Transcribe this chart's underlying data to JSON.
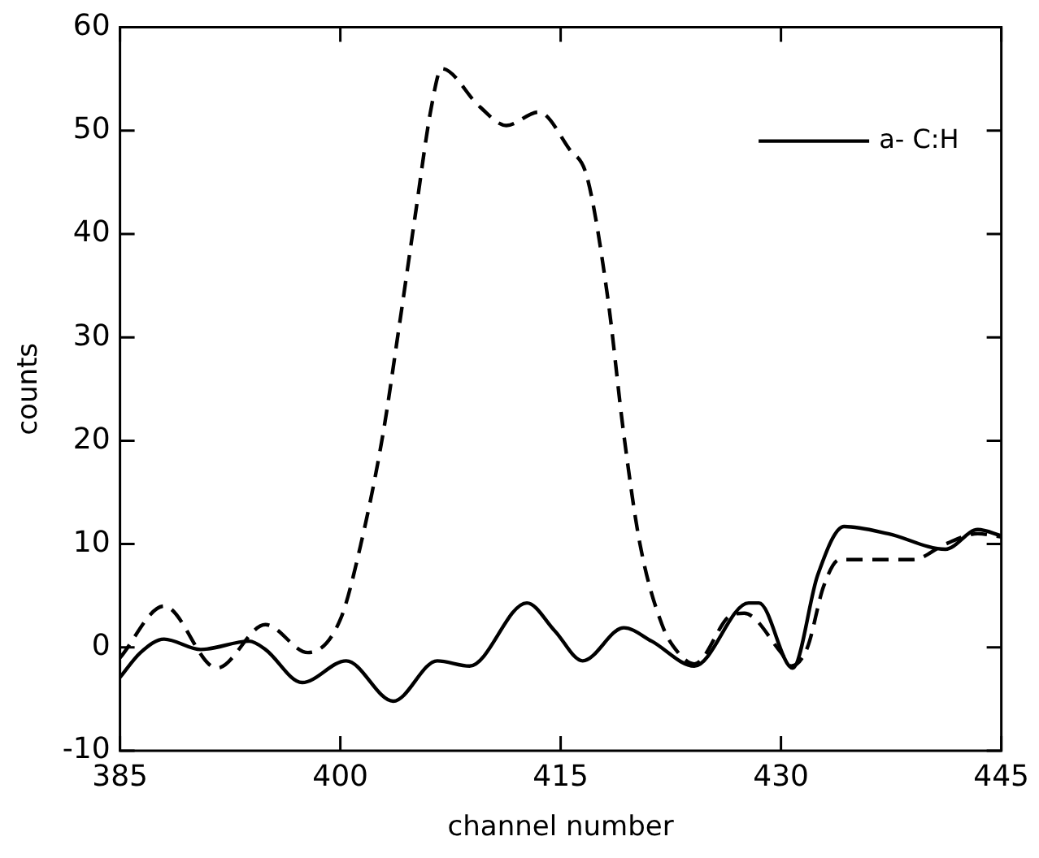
{
  "chart_data": {
    "type": "line",
    "xlabel": "channel number",
    "ylabel": "counts",
    "xlim": [
      385,
      445
    ],
    "xticks": [
      385,
      400,
      415,
      430,
      445
    ],
    "ylim": [
      -10,
      60
    ],
    "yticks": [
      -10,
      0,
      10,
      20,
      30,
      40,
      50,
      60
    ],
    "grid": false,
    "legend": "top right",
    "marker": "none",
    "series": [
      {
        "color": "#000000",
        "line_style": "dashed",
        "x": [
          385,
          388,
          391.6,
          394.9,
          397.8,
          400,
          401.4,
          402.9,
          404,
          405.1,
          406.2,
          406.9,
          409.5,
          411.3,
          413.5,
          415.6,
          416.8,
          418.2,
          419.3,
          420.4,
          421.9,
          423,
          424.1,
          426.7,
          427.5,
          430,
          430.7,
          431.8,
          432.9,
          434,
          437.3,
          439,
          441.2,
          443.4,
          445
        ],
        "values": [
          -1,
          4,
          -2,
          2.2,
          -0.5,
          2.7,
          10,
          20.6,
          31,
          41.8,
          52.3,
          56,
          52.3,
          50.5,
          51.8,
          48.2,
          45.5,
          33.9,
          20.6,
          10,
          2.2,
          -0.5,
          -1.6,
          3.2,
          3.3,
          -0.5,
          -1.8,
          0,
          5.9,
          8.5,
          8.5,
          8.5,
          10,
          11,
          10.7
        ]
      },
      {
        "name": "a- C:H",
        "color": "#000000",
        "line_style": "solid",
        "x": [
          385,
          386.4,
          388,
          390.5,
          393.8,
          394.9,
          397.4,
          400.4,
          403.6,
          406.6,
          408.8,
          412.7,
          414.6,
          416.5,
          419.3,
          421.2,
          424.1,
          427.8,
          428.5,
          430.8,
          432.5,
          434.3,
          437.3,
          441.2,
          443.4,
          445
        ],
        "values": [
          -2.9,
          -0.5,
          0.8,
          -0.2,
          0.6,
          -0.2,
          -3.4,
          -1.3,
          -5.2,
          -1.3,
          -1.8,
          4.3,
          1.6,
          -1.3,
          1.9,
          0.6,
          -1.8,
          4.3,
          4.3,
          -2,
          7,
          11.7,
          11,
          9.5,
          11.4,
          10.8
        ]
      }
    ]
  }
}
